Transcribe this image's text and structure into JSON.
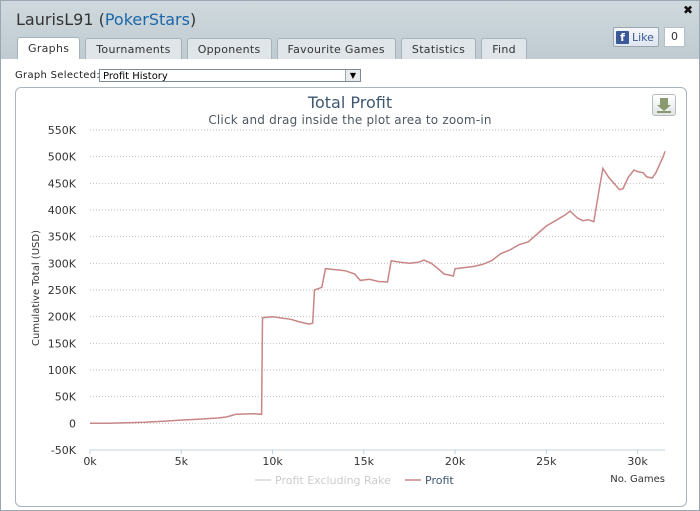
{
  "window": {
    "player": "LaurisL91",
    "site": "PokerStars",
    "close_icon": "close-icon"
  },
  "facebook": {
    "like_label": "Like",
    "count": "0"
  },
  "tabs": [
    {
      "label": "Graphs",
      "active": true
    },
    {
      "label": "Tournaments"
    },
    {
      "label": "Opponents"
    },
    {
      "label": "Favourite Games"
    },
    {
      "label": "Statistics"
    },
    {
      "label": "Find"
    }
  ],
  "graph_selector": {
    "label": "Graph Selected:",
    "value": "Profit History"
  },
  "chart_data": {
    "type": "line",
    "title": "Total Profit",
    "subtitle": "Click and drag inside the plot area to zoom-in",
    "xlabel": "No. Games",
    "ylabel": "Cumulative Total (USD)",
    "xlim": [
      0,
      31500
    ],
    "ylim": [
      -50000,
      550000
    ],
    "x_ticks": [
      "0k",
      "5k",
      "10k",
      "15k",
      "20k",
      "25k",
      "30k"
    ],
    "y_ticks": [
      "-50K",
      "0",
      "50K",
      "100K",
      "150K",
      "200K",
      "250K",
      "300K",
      "350K",
      "400K",
      "450K",
      "500K",
      "550K"
    ],
    "grid": "horizontal dotted",
    "legend_position": "bottom-center",
    "series": [
      {
        "name": "Profit Excluding Rake",
        "color": "#d9d9d9",
        "visible": false,
        "values": []
      },
      {
        "name": "Profit",
        "color": "#c98686",
        "visible": true,
        "points": [
          [
            0,
            0
          ],
          [
            1000,
            0
          ],
          [
            2000,
            1000
          ],
          [
            3000,
            2000
          ],
          [
            4000,
            4000
          ],
          [
            5000,
            6000
          ],
          [
            6000,
            8000
          ],
          [
            7000,
            10000
          ],
          [
            7500,
            12000
          ],
          [
            8000,
            17000
          ],
          [
            9000,
            18000
          ],
          [
            9400,
            17000
          ],
          [
            9450,
            198000
          ],
          [
            10000,
            200000
          ],
          [
            11000,
            195000
          ],
          [
            11500,
            190000
          ],
          [
            12000,
            186000
          ],
          [
            12200,
            188000
          ],
          [
            12300,
            250000
          ],
          [
            12700,
            255000
          ],
          [
            12900,
            290000
          ],
          [
            13500,
            288000
          ],
          [
            14000,
            286000
          ],
          [
            14500,
            280000
          ],
          [
            14800,
            268000
          ],
          [
            15300,
            270000
          ],
          [
            15800,
            266000
          ],
          [
            16300,
            265000
          ],
          [
            16500,
            305000
          ],
          [
            17000,
            302000
          ],
          [
            17500,
            300000
          ],
          [
            18000,
            302000
          ],
          [
            18300,
            306000
          ],
          [
            18700,
            300000
          ],
          [
            19000,
            292000
          ],
          [
            19400,
            280000
          ],
          [
            19700,
            278000
          ],
          [
            19900,
            276000
          ],
          [
            20000,
            290000
          ],
          [
            20500,
            292000
          ],
          [
            21000,
            294000
          ],
          [
            21500,
            298000
          ],
          [
            22000,
            305000
          ],
          [
            22500,
            318000
          ],
          [
            23000,
            325000
          ],
          [
            23500,
            335000
          ],
          [
            24000,
            340000
          ],
          [
            24500,
            355000
          ],
          [
            25000,
            370000
          ],
          [
            25500,
            380000
          ],
          [
            26000,
            390000
          ],
          [
            26300,
            398000
          ],
          [
            26700,
            385000
          ],
          [
            27000,
            380000
          ],
          [
            27300,
            382000
          ],
          [
            27600,
            378000
          ],
          [
            27900,
            440000
          ],
          [
            28100,
            478000
          ],
          [
            28400,
            462000
          ],
          [
            28700,
            450000
          ],
          [
            29000,
            438000
          ],
          [
            29200,
            440000
          ],
          [
            29500,
            462000
          ],
          [
            29800,
            475000
          ],
          [
            30000,
            472000
          ],
          [
            30300,
            470000
          ],
          [
            30500,
            462000
          ],
          [
            30800,
            460000
          ],
          [
            31000,
            470000
          ],
          [
            31200,
            485000
          ],
          [
            31400,
            500000
          ],
          [
            31500,
            510000
          ]
        ]
      }
    ]
  }
}
